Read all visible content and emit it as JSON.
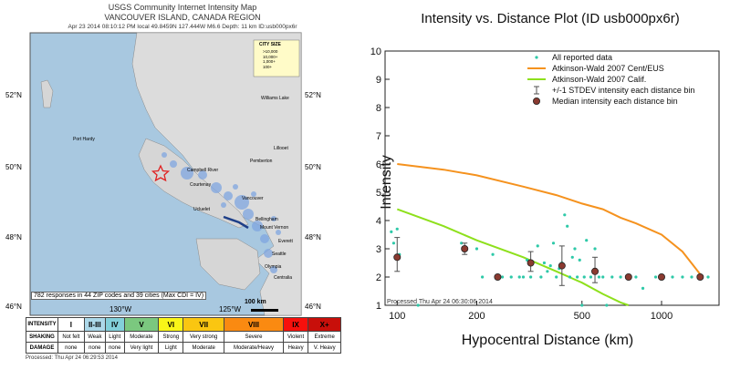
{
  "map": {
    "title1": "USGS Community Internet Intensity Map",
    "title2": "VANCOUVER ISLAND, CANADA REGION",
    "title3": "Apr 23 2014 08:10:12 PM local 49.8459N 127.444W M6.6 Depth: 11 km ID:usb000px6r",
    "lat_labels": [
      "52°N",
      "50°N",
      "48°N",
      "46°N"
    ],
    "lon_labels": [
      "130°W",
      "125°W"
    ],
    "places": [
      "Port Hardy",
      "Campbell River",
      "Courtenay",
      "Vancouver",
      "Ucluelet",
      "Bellingham",
      "Mount Vernon",
      "Everett",
      "Seattle",
      "Olympia",
      "Centralia",
      "Williams Lake",
      "Lillooet",
      "Pemberton"
    ],
    "legend_title": "CITY SIZE",
    "legend_items": [
      ">10,000",
      "10,000+",
      "1,000+",
      "100+"
    ],
    "footer": "782 responses in 44 ZIP codes and 39 cities (Max CDI = IV)",
    "scale": "100 km",
    "scale_rows": [
      "INTENSITY",
      "SHAKING",
      "DAMAGE"
    ],
    "intensity": [
      "I",
      "II-III",
      "IV",
      "V",
      "VI",
      "VII",
      "VIII",
      "IX",
      "X+"
    ],
    "intensity_colors": [
      "#ffffff",
      "#acd8e9",
      "#83d0da",
      "#7bc87f",
      "#f9f518",
      "#fac611",
      "#fa8a11",
      "#f7100c",
      "#c80f0a"
    ],
    "shaking": [
      "Not felt",
      "Weak",
      "Light",
      "Moderate",
      "Strong",
      "Very strong",
      "Severe",
      "Violent",
      "Extreme"
    ],
    "damage": [
      "none",
      "none",
      "none",
      "Very light",
      "Light",
      "Moderate",
      "Moderate/Heavy",
      "Heavy",
      "V. Heavy"
    ],
    "processed": "Processed: Thu Apr 24 06:29:53 2014"
  },
  "chart_data": {
    "type": "scatter",
    "title": "Intensity vs. Distance Plot (ID usb000px6r)",
    "xlabel": "Hypocentral Distance (km)",
    "ylabel": "Intensity",
    "x_scale": "log",
    "xlim": [
      90,
      1650
    ],
    "ylim": [
      1,
      10
    ],
    "x_ticks": [
      100,
      200,
      500,
      1000
    ],
    "y_ticks": [
      1,
      2,
      3,
      4,
      5,
      6,
      7,
      8,
      9,
      10
    ],
    "legend_position": "top-right",
    "legend": [
      "All reported data",
      "Atkinson-Wald 2007 Cent/EUS",
      "Atkinson-Wald 2007 Calif.",
      "+/-1 STDEV intensity each distance bin",
      "Median intensity each distance bin"
    ],
    "colors": {
      "data": "#2ec9a8",
      "ceus": "#f5921e",
      "calif": "#8ee01c",
      "bars": "#505050",
      "median": "#8a3a30"
    },
    "reported": [
      {
        "x": 95,
        "y": 3.6
      },
      {
        "x": 97,
        "y": 3.2
      },
      {
        "x": 100,
        "y": 3.7
      },
      {
        "x": 102,
        "y": 2.8
      },
      {
        "x": 120,
        "y": 1.0
      },
      {
        "x": 175,
        "y": 3.2
      },
      {
        "x": 200,
        "y": 3.0
      },
      {
        "x": 210,
        "y": 2.0
      },
      {
        "x": 230,
        "y": 2.8
      },
      {
        "x": 240,
        "y": 2.0
      },
      {
        "x": 250,
        "y": 2.0
      },
      {
        "x": 270,
        "y": 2.0
      },
      {
        "x": 290,
        "y": 2.0
      },
      {
        "x": 300,
        "y": 2.0
      },
      {
        "x": 310,
        "y": 2.6
      },
      {
        "x": 320,
        "y": 2.0
      },
      {
        "x": 340,
        "y": 3.1
      },
      {
        "x": 350,
        "y": 2.0
      },
      {
        "x": 360,
        "y": 2.5
      },
      {
        "x": 370,
        "y": 2.2
      },
      {
        "x": 380,
        "y": 2.4
      },
      {
        "x": 390,
        "y": 3.2
      },
      {
        "x": 400,
        "y": 2.0
      },
      {
        "x": 410,
        "y": 2.3
      },
      {
        "x": 420,
        "y": 2.5
      },
      {
        "x": 430,
        "y": 4.2
      },
      {
        "x": 440,
        "y": 3.8
      },
      {
        "x": 450,
        "y": 2.0
      },
      {
        "x": 460,
        "y": 2.7
      },
      {
        "x": 470,
        "y": 3.0
      },
      {
        "x": 480,
        "y": 2.0
      },
      {
        "x": 490,
        "y": 2.6
      },
      {
        "x": 500,
        "y": 1.0
      },
      {
        "x": 510,
        "y": 2.0
      },
      {
        "x": 520,
        "y": 3.3
      },
      {
        "x": 540,
        "y": 2.0
      },
      {
        "x": 560,
        "y": 3.0
      },
      {
        "x": 580,
        "y": 2.0
      },
      {
        "x": 600,
        "y": 2.0
      },
      {
        "x": 620,
        "y": 1.0
      },
      {
        "x": 650,
        "y": 2.0
      },
      {
        "x": 700,
        "y": 2.0
      },
      {
        "x": 750,
        "y": 2.0
      },
      {
        "x": 800,
        "y": 2.0
      },
      {
        "x": 850,
        "y": 1.6
      },
      {
        "x": 950,
        "y": 2.0
      },
      {
        "x": 1100,
        "y": 2.0
      },
      {
        "x": 1200,
        "y": 2.0
      },
      {
        "x": 1300,
        "y": 2.0
      },
      {
        "x": 1500,
        "y": 2.0
      }
    ],
    "ceus_curve": [
      {
        "x": 100,
        "y": 6.0
      },
      {
        "x": 150,
        "y": 5.8
      },
      {
        "x": 200,
        "y": 5.6
      },
      {
        "x": 300,
        "y": 5.2
      },
      {
        "x": 400,
        "y": 4.9
      },
      {
        "x": 500,
        "y": 4.6
      },
      {
        "x": 600,
        "y": 4.4
      },
      {
        "x": 700,
        "y": 4.1
      },
      {
        "x": 800,
        "y": 3.9
      },
      {
        "x": 1000,
        "y": 3.5
      },
      {
        "x": 1200,
        "y": 2.9
      },
      {
        "x": 1400,
        "y": 2.1
      }
    ],
    "calif_curve": [
      {
        "x": 100,
        "y": 4.4
      },
      {
        "x": 150,
        "y": 3.8
      },
      {
        "x": 200,
        "y": 3.3
      },
      {
        "x": 300,
        "y": 2.7
      },
      {
        "x": 400,
        "y": 2.2
      },
      {
        "x": 500,
        "y": 1.8
      },
      {
        "x": 600,
        "y": 1.4
      },
      {
        "x": 700,
        "y": 1.1
      },
      {
        "x": 750,
        "y": 1.0
      }
    ],
    "medians": [
      {
        "x": 100,
        "y": 2.7,
        "lo": 2.2,
        "hi": 3.4
      },
      {
        "x": 180,
        "y": 3.0,
        "lo": 2.8,
        "hi": 3.2
      },
      {
        "x": 240,
        "y": 2.0,
        "lo": 2.0,
        "hi": 2.0
      },
      {
        "x": 320,
        "y": 2.5,
        "lo": 2.2,
        "hi": 2.9
      },
      {
        "x": 420,
        "y": 2.4,
        "lo": 1.7,
        "hi": 3.1
      },
      {
        "x": 560,
        "y": 2.2,
        "lo": 1.8,
        "hi": 2.7
      },
      {
        "x": 750,
        "y": 2.0,
        "lo": 2.0,
        "hi": 2.0
      },
      {
        "x": 1000,
        "y": 2.0,
        "lo": 2.0,
        "hi": 2.0
      },
      {
        "x": 1400,
        "y": 2.0,
        "lo": 2.0,
        "hi": 2.0
      }
    ],
    "processed": "Processed Thu Apr 24 06:30:06 2014"
  }
}
